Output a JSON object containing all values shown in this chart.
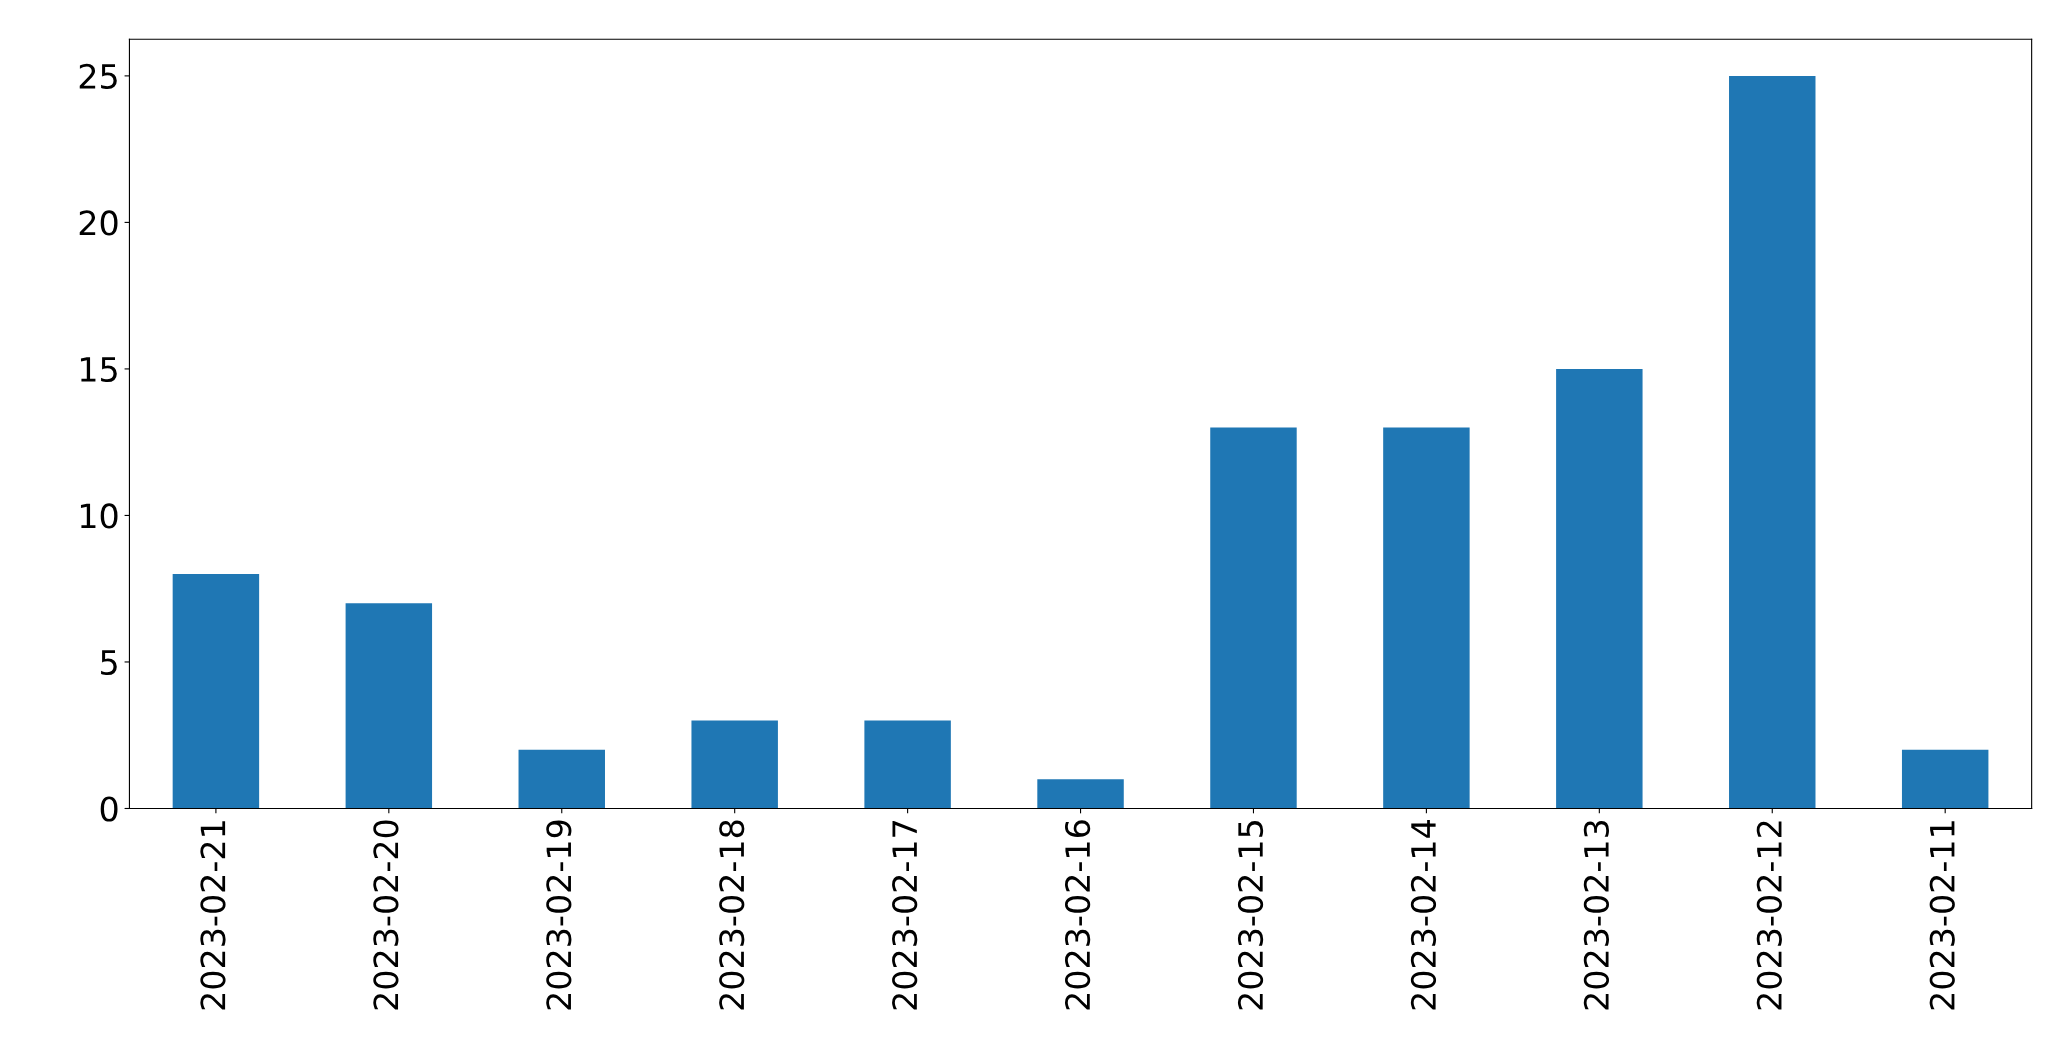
{
  "chart_data": {
    "type": "bar",
    "categories": [
      "2023-02-21",
      "2023-02-20",
      "2023-02-19",
      "2023-02-18",
      "2023-02-17",
      "2023-02-16",
      "2023-02-15",
      "2023-02-14",
      "2023-02-13",
      "2023-02-12",
      "2023-02-11"
    ],
    "values": [
      8,
      7,
      2,
      3,
      3,
      1,
      13,
      13,
      15,
      25,
      2
    ],
    "color": "#1f77b4",
    "ylim": [
      0,
      26.25
    ],
    "yticks": [
      0,
      5,
      10,
      15,
      20,
      25
    ],
    "grid": false,
    "legend": false
  }
}
